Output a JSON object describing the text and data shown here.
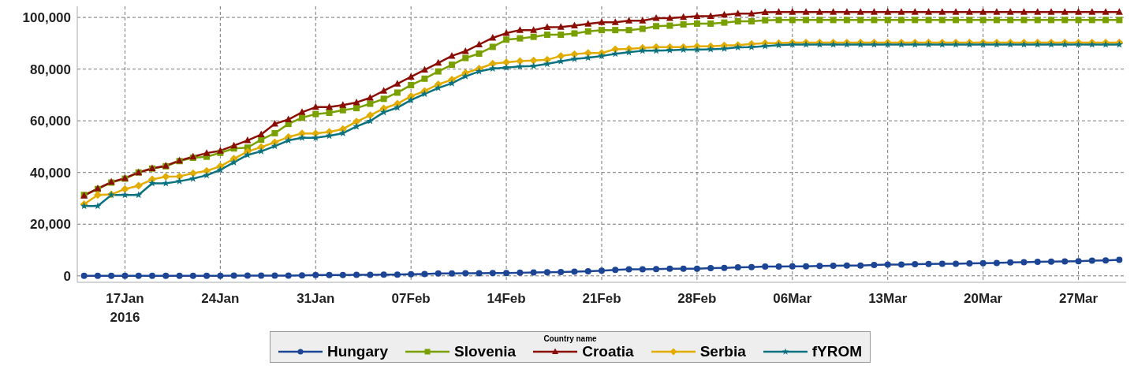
{
  "chart_data": {
    "type": "line",
    "legend_title": "Country name",
    "legend": "bottom",
    "grid": true,
    "line_style": "solid",
    "xlim": [
      "2016-01-13T12:00",
      "2016-03-30T12:00"
    ],
    "xticks": [
      {
        "value": "2016-01-17",
        "label": "17Jan\n2016"
      },
      {
        "value": "2016-01-24",
        "label": "24Jan"
      },
      {
        "value": "2016-01-31",
        "label": "31Jan"
      },
      {
        "value": "2016-02-07",
        "label": "07Feb"
      },
      {
        "value": "2016-02-14",
        "label": "14Feb"
      },
      {
        "value": "2016-02-21",
        "label": "21Feb"
      },
      {
        "value": "2016-02-28",
        "label": "28Feb"
      },
      {
        "value": "2016-03-06",
        "label": "06Mar"
      },
      {
        "value": "2016-03-13",
        "label": "13Mar"
      },
      {
        "value": "2016-03-20",
        "label": "20Mar"
      },
      {
        "value": "2016-03-27",
        "label": "27Mar"
      }
    ],
    "ylim": [
      -2500,
      104300
    ],
    "yticks": [
      {
        "value": 0,
        "label": "0"
      },
      {
        "value": 20000,
        "label": "20,000"
      },
      {
        "value": 40000,
        "label": "40,000"
      },
      {
        "value": 60000,
        "label": "60,000"
      },
      {
        "value": 80000,
        "label": "80,000"
      },
      {
        "value": 100000,
        "label": "100,000"
      }
    ],
    "x": [
      "2016-01-14",
      "2016-01-15",
      "2016-01-16",
      "2016-01-17",
      "2016-01-18",
      "2016-01-19",
      "2016-01-20",
      "2016-01-21",
      "2016-01-22",
      "2016-01-23",
      "2016-01-24",
      "2016-01-25",
      "2016-01-26",
      "2016-01-27",
      "2016-01-28",
      "2016-01-29",
      "2016-01-30",
      "2016-01-31",
      "2016-02-01",
      "2016-02-02",
      "2016-02-03",
      "2016-02-04",
      "2016-02-05",
      "2016-02-06",
      "2016-02-07",
      "2016-02-08",
      "2016-02-09",
      "2016-02-10",
      "2016-02-11",
      "2016-02-12",
      "2016-02-13",
      "2016-02-14",
      "2016-02-15",
      "2016-02-16",
      "2016-02-17",
      "2016-02-18",
      "2016-02-19",
      "2016-02-20",
      "2016-02-21",
      "2016-02-22",
      "2016-02-23",
      "2016-02-24",
      "2016-02-25",
      "2016-02-26",
      "2016-02-27",
      "2016-02-28",
      "2016-02-29",
      "2016-03-01",
      "2016-03-02",
      "2016-03-03",
      "2016-03-04",
      "2016-03-05",
      "2016-03-06",
      "2016-03-07",
      "2016-03-08",
      "2016-03-09",
      "2016-03-10",
      "2016-03-11",
      "2016-03-12",
      "2016-03-13",
      "2016-03-14",
      "2016-03-15",
      "2016-03-16",
      "2016-03-17",
      "2016-03-18",
      "2016-03-19",
      "2016-03-20",
      "2016-03-21",
      "2016-03-22",
      "2016-03-23",
      "2016-03-24",
      "2016-03-25",
      "2016-03-26",
      "2016-03-27",
      "2016-03-28",
      "2016-03-29",
      "2016-03-30"
    ],
    "series": [
      {
        "name": "Hungary",
        "color": "#1c4595",
        "marker": "circle",
        "values": [
          0,
          0,
          0,
          0,
          0,
          0,
          0,
          0,
          0,
          0,
          0,
          100,
          100,
          100,
          100,
          100,
          200,
          300,
          300,
          300,
          400,
          400,
          500,
          500,
          600,
          700,
          900,
          900,
          1000,
          1000,
          1100,
          1100,
          1200,
          1300,
          1400,
          1500,
          1600,
          1800,
          2000,
          2300,
          2500,
          2500,
          2600,
          2800,
          2800,
          2800,
          3000,
          3100,
          3300,
          3400,
          3600,
          3600,
          3700,
          3700,
          3800,
          3900,
          4000,
          4000,
          4200,
          4400,
          4400,
          4500,
          4600,
          4700,
          4700,
          4800,
          4900,
          5000,
          5200,
          5300,
          5400,
          5500,
          5600,
          5700,
          5900,
          6000,
          6200
        ]
      },
      {
        "name": "Slovenia",
        "color": "#7aa000",
        "marker": "square",
        "values": [
          31300,
          33600,
          36100,
          37600,
          40000,
          41500,
          42400,
          44400,
          45700,
          46100,
          47600,
          49300,
          49600,
          52700,
          55200,
          58800,
          61200,
          62600,
          63100,
          64100,
          64900,
          66600,
          68500,
          70900,
          73800,
          76300,
          79100,
          81700,
          84300,
          86000,
          88600,
          91400,
          91900,
          92500,
          93300,
          93300,
          93800,
          94600,
          95100,
          95100,
          95100,
          95600,
          96600,
          96800,
          97300,
          97600,
          97600,
          98000,
          98500,
          98500,
          98900,
          99000,
          99000,
          99000,
          99000,
          99000,
          99000,
          99000,
          99000,
          99000,
          99000,
          99000,
          99000,
          99000,
          99000,
          99000,
          99000,
          99000,
          99000,
          99000,
          99000,
          99000,
          99000,
          99000,
          99000,
          99000,
          99000
        ]
      },
      {
        "name": "Croatia",
        "color": "#8b0e04",
        "marker": "triangle",
        "values": [
          31000,
          33800,
          36300,
          37800,
          40000,
          41600,
          42600,
          44600,
          46100,
          47500,
          48400,
          50400,
          52400,
          54700,
          58800,
          60500,
          63300,
          65300,
          65300,
          66100,
          67100,
          68900,
          71600,
          74300,
          77000,
          79700,
          82400,
          85100,
          86900,
          89500,
          92100,
          93900,
          95100,
          95100,
          96200,
          96300,
          96800,
          97500,
          98100,
          98100,
          98700,
          98700,
          99700,
          99700,
          100100,
          100500,
          100500,
          101000,
          101500,
          101500,
          102000,
          102100,
          102100,
          102100,
          102100,
          102100,
          102100,
          102100,
          102100,
          102100,
          102100,
          102100,
          102100,
          102100,
          102100,
          102100,
          102100,
          102100,
          102100,
          102100,
          102100,
          102100,
          102100,
          102100,
          102100,
          102100,
          102100
        ]
      },
      {
        "name": "Serbia",
        "color": "#e2ac00",
        "marker": "diamond",
        "values": [
          27700,
          31300,
          31500,
          33600,
          34900,
          37300,
          38400,
          38500,
          39700,
          40600,
          42400,
          45300,
          48100,
          49800,
          51700,
          53700,
          55100,
          55100,
          55700,
          56800,
          59700,
          62100,
          64800,
          66600,
          69500,
          71500,
          74100,
          75900,
          78500,
          80200,
          82100,
          82600,
          83100,
          83300,
          83600,
          85100,
          85800,
          86200,
          86200,
          87700,
          87800,
          88200,
          88500,
          88500,
          88500,
          88800,
          88800,
          89100,
          89300,
          89700,
          90000,
          90000,
          90300,
          90300,
          90300,
          90300,
          90300,
          90300,
          90300,
          90300,
          90300,
          90300,
          90300,
          90300,
          90300,
          90300,
          90300,
          90300,
          90300,
          90300,
          90300,
          90300,
          90300,
          90300,
          90300,
          90300,
          90300
        ]
      },
      {
        "name": "fYROM",
        "color": "#0b7280",
        "marker": "star",
        "values": [
          27000,
          27000,
          31300,
          31300,
          31300,
          35800,
          35800,
          36600,
          37600,
          38900,
          41000,
          43900,
          46800,
          48200,
          50200,
          52400,
          53400,
          53400,
          54200,
          55200,
          57800,
          59900,
          63300,
          65100,
          68000,
          70400,
          72700,
          74500,
          77200,
          79100,
          80200,
          80600,
          81000,
          81200,
          82000,
          83000,
          83900,
          84400,
          85100,
          85900,
          86500,
          87100,
          87100,
          87300,
          87500,
          87500,
          87700,
          87900,
          88400,
          88500,
          88900,
          89300,
          89500,
          89500,
          89500,
          89500,
          89500,
          89500,
          89500,
          89500,
          89500,
          89500,
          89500,
          89500,
          89500,
          89500,
          89500,
          89500,
          89500,
          89500,
          89500,
          89500,
          89500,
          89500,
          89500,
          89500,
          89500
        ]
      }
    ]
  }
}
